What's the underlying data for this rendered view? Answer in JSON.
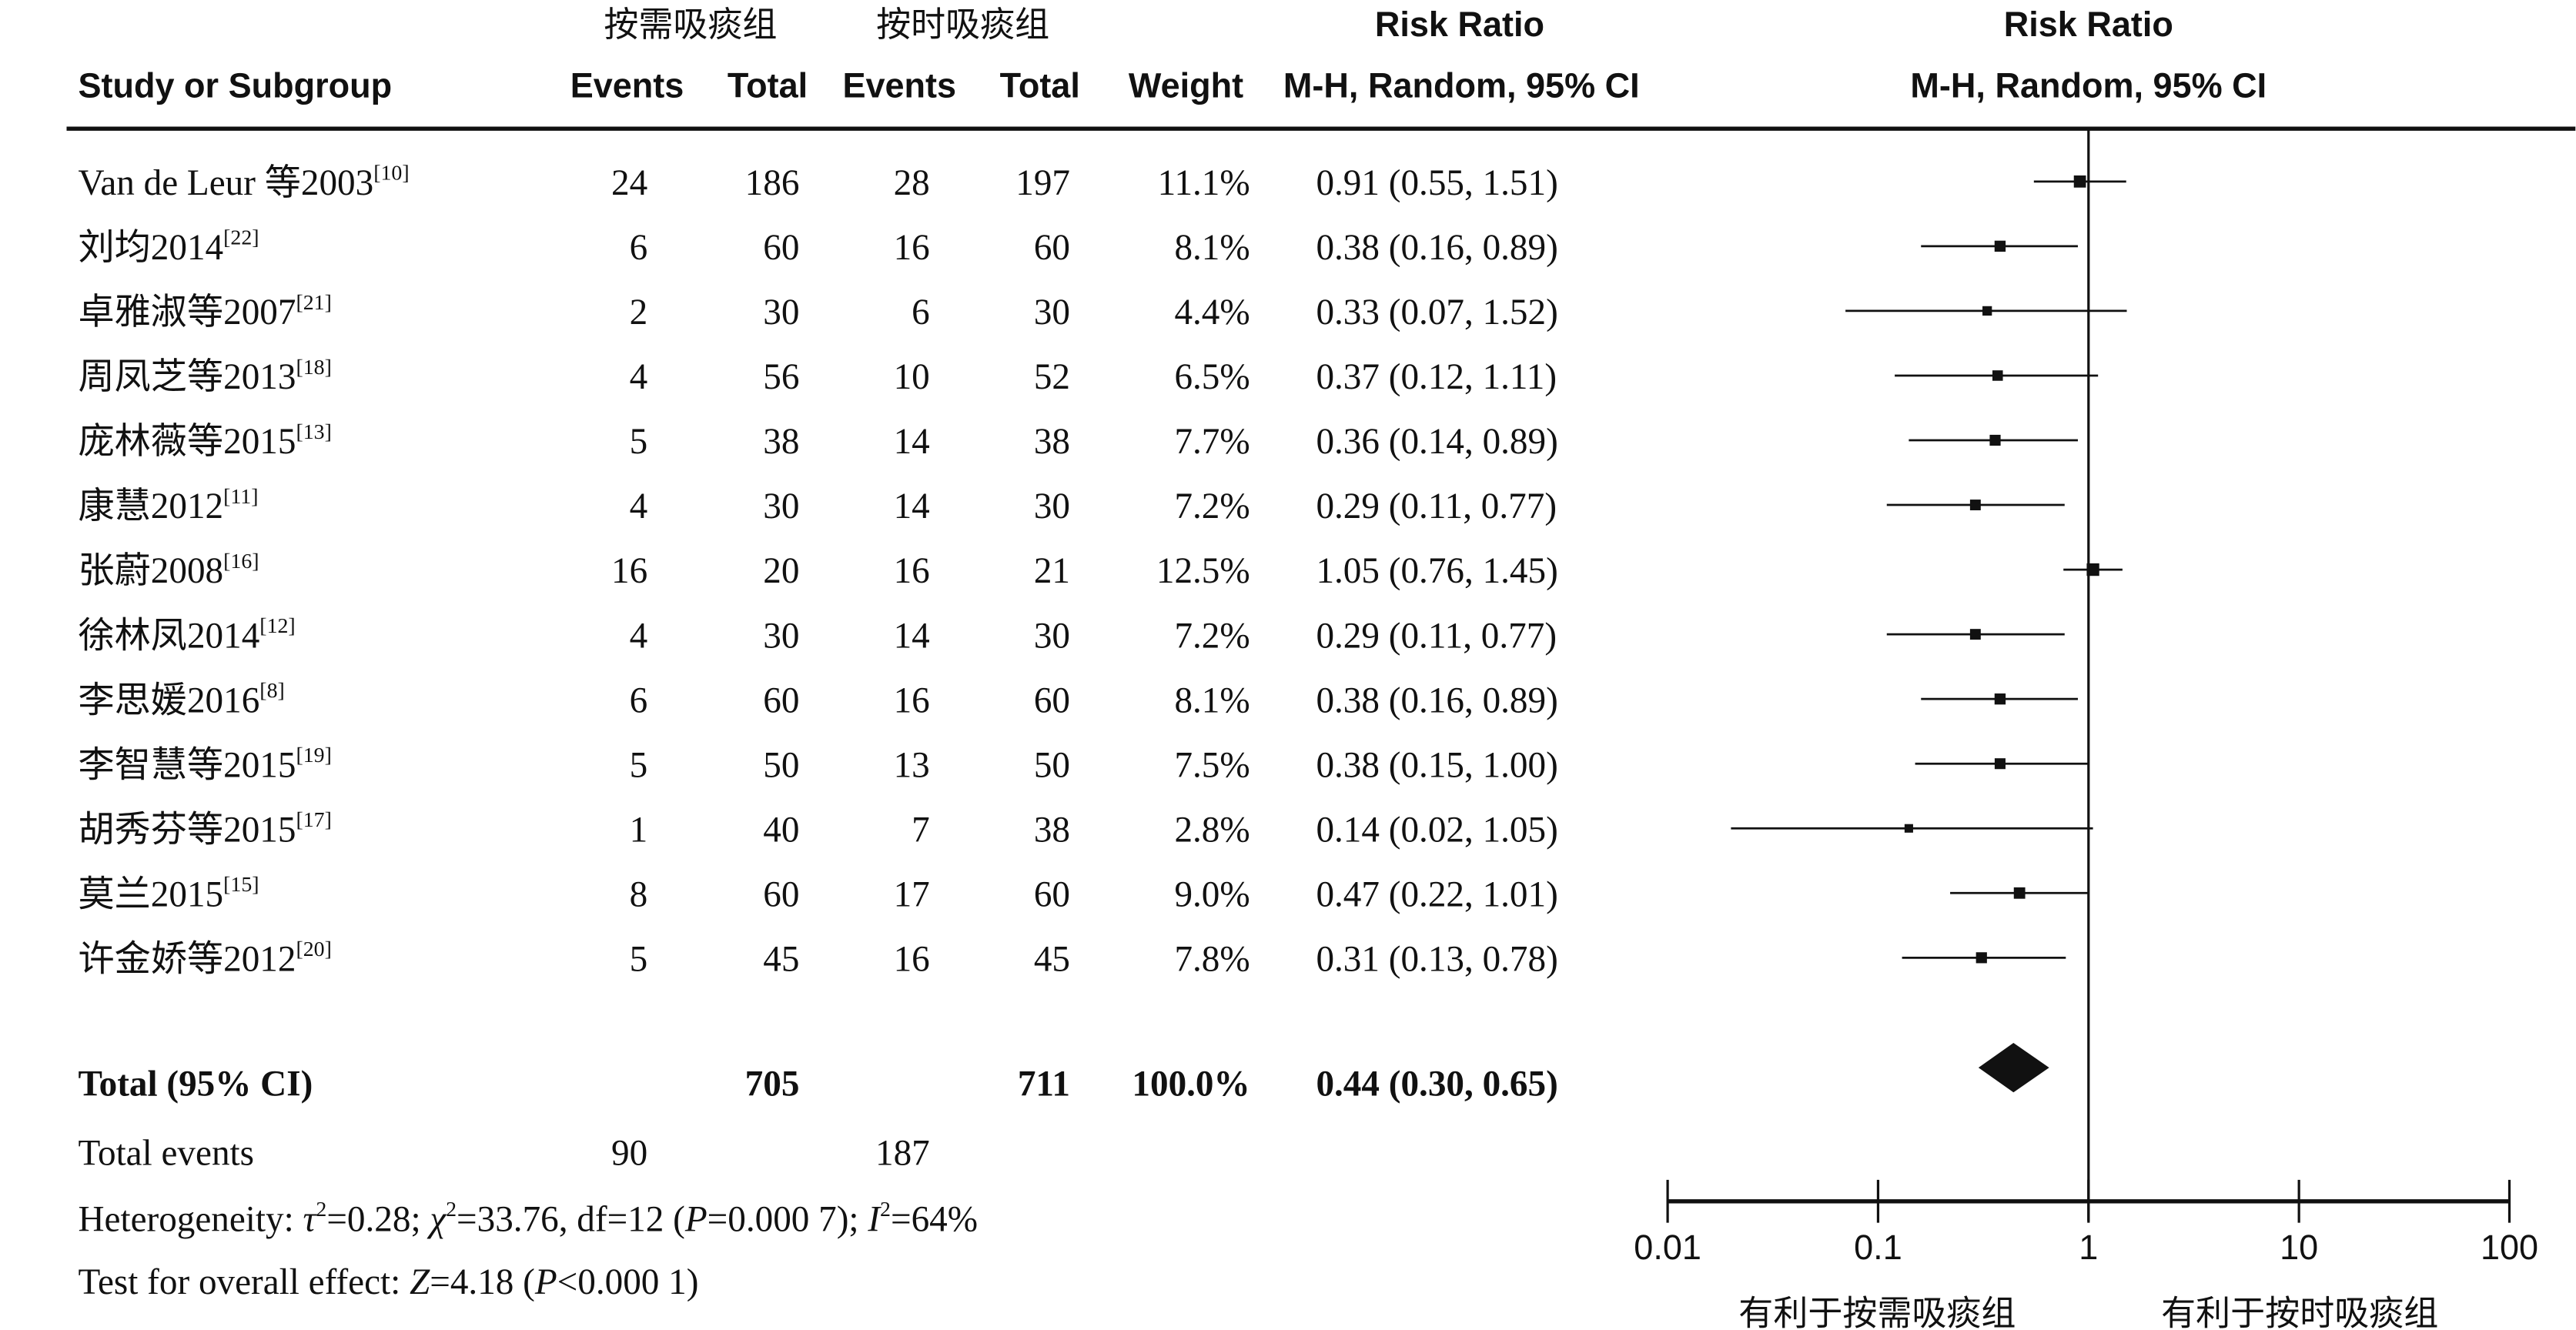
{
  "header": {
    "group1": "按需吸痰组",
    "group2": "按时吸痰组",
    "risk_ratio": "Risk Ratio",
    "study_col": "Study or Subgroup",
    "events": "Events",
    "total": "Total",
    "weight": "Weight",
    "method": "M-H, Random, 95% CI",
    "plot_title": "Risk Ratio",
    "plot_method": "M-H, Random, 95% CI"
  },
  "chart_data": {
    "type": "forest",
    "xscale": "log",
    "xlim": [
      0.01,
      100
    ],
    "xticks": [
      "0.01",
      "0.1",
      "1",
      "10",
      "100"
    ],
    "null_line": 1,
    "xlabel_left": "有利于按需吸痰组",
    "xlabel_right": "有利于按时吸痰组",
    "studies": [
      {
        "name": "Van de Leur 等2003",
        "ref": "[10]",
        "e1": "24",
        "t1": "186",
        "e2": "28",
        "t2": "197",
        "weight": "11.1%",
        "ci": "0.91 (0.55, 1.51)",
        "rr": 0.91,
        "lo": 0.55,
        "hi": 1.51,
        "w": 11.1
      },
      {
        "name": "刘均2014",
        "ref": "[22]",
        "e1": "6",
        "t1": "60",
        "e2": "16",
        "t2": "60",
        "weight": "8.1%",
        "ci": "0.38 (0.16, 0.89)",
        "rr": 0.38,
        "lo": 0.16,
        "hi": 0.89,
        "w": 8.1
      },
      {
        "name": "卓雅淑等2007",
        "ref": "[21]",
        "e1": "2",
        "t1": "30",
        "e2": "6",
        "t2": "30",
        "weight": "4.4%",
        "ci": "0.33 (0.07, 1.52)",
        "rr": 0.33,
        "lo": 0.07,
        "hi": 1.52,
        "w": 4.4
      },
      {
        "name": "周凤芝等2013",
        "ref": "[18]",
        "e1": "4",
        "t1": "56",
        "e2": "10",
        "t2": "52",
        "weight": "6.5%",
        "ci": "0.37 (0.12, 1.11)",
        "rr": 0.37,
        "lo": 0.12,
        "hi": 1.11,
        "w": 6.5
      },
      {
        "name": "庞林薇等2015",
        "ref": "[13]",
        "e1": "5",
        "t1": "38",
        "e2": "14",
        "t2": "38",
        "weight": "7.7%",
        "ci": "0.36 (0.14, 0.89)",
        "rr": 0.36,
        "lo": 0.14,
        "hi": 0.89,
        "w": 7.7
      },
      {
        "name": "康慧2012",
        "ref": "[11]",
        "e1": "4",
        "t1": "30",
        "e2": "14",
        "t2": "30",
        "weight": "7.2%",
        "ci": "0.29 (0.11, 0.77)",
        "rr": 0.29,
        "lo": 0.11,
        "hi": 0.77,
        "w": 7.2
      },
      {
        "name": "张蔚2008",
        "ref": "[16]",
        "e1": "16",
        "t1": "20",
        "e2": "16",
        "t2": "21",
        "weight": "12.5%",
        "ci": "1.05 (0.76, 1.45)",
        "rr": 1.05,
        "lo": 0.76,
        "hi": 1.45,
        "w": 12.5
      },
      {
        "name": "徐林凤2014",
        "ref": "[12]",
        "e1": "4",
        "t1": "30",
        "e2": "14",
        "t2": "30",
        "weight": "7.2%",
        "ci": "0.29 (0.11, 0.77)",
        "rr": 0.29,
        "lo": 0.11,
        "hi": 0.77,
        "w": 7.2
      },
      {
        "name": "李思媛2016",
        "ref": "[8]",
        "e1": "6",
        "t1": "60",
        "e2": "16",
        "t2": "60",
        "weight": "8.1%",
        "ci": "0.38 (0.16, 0.89)",
        "rr": 0.38,
        "lo": 0.16,
        "hi": 0.89,
        "w": 8.1
      },
      {
        "name": "李智慧等2015",
        "ref": "[19]",
        "e1": "5",
        "t1": "50",
        "e2": "13",
        "t2": "50",
        "weight": "7.5%",
        "ci": "0.38 (0.15, 1.00)",
        "rr": 0.38,
        "lo": 0.15,
        "hi": 1.0,
        "w": 7.5
      },
      {
        "name": "胡秀芬等2015",
        "ref": "[17]",
        "e1": "1",
        "t1": "40",
        "e2": "7",
        "t2": "38",
        "weight": "2.8%",
        "ci": "0.14 (0.02, 1.05)",
        "rr": 0.14,
        "lo": 0.02,
        "hi": 1.05,
        "w": 2.8
      },
      {
        "name": "莫兰2015",
        "ref": "[15]",
        "e1": "8",
        "t1": "60",
        "e2": "17",
        "t2": "60",
        "weight": "9.0%",
        "ci": "0.47 (0.22, 1.01)",
        "rr": 0.47,
        "lo": 0.22,
        "hi": 1.01,
        "w": 9.0
      },
      {
        "name": "许金娇等2012",
        "ref": "[20]",
        "e1": "5",
        "t1": "45",
        "e2": "16",
        "t2": "45",
        "weight": "7.8%",
        "ci": "0.31 (0.13, 0.78)",
        "rr": 0.31,
        "lo": 0.13,
        "hi": 0.78,
        "w": 7.8
      }
    ],
    "total": {
      "label": "Total (95% CI)",
      "t1": "705",
      "t2": "711",
      "weight": "100.0%",
      "ci": "0.44 (0.30, 0.65)",
      "rr": 0.44,
      "lo": 0.3,
      "hi": 0.65
    },
    "total_events": {
      "label": "Total events",
      "e1": "90",
      "e2": "187"
    },
    "heterogeneity": {
      "prefix": "Heterogeneity: ",
      "tau2": "=0.28; ",
      "chi2": "=33.76, df=12 (",
      "p": "=0.000 7); ",
      "i2": "=64%"
    },
    "overall": {
      "prefix": "Test for overall effect: ",
      "z": "=4.18 (",
      "p": "<0.000 1)"
    }
  }
}
